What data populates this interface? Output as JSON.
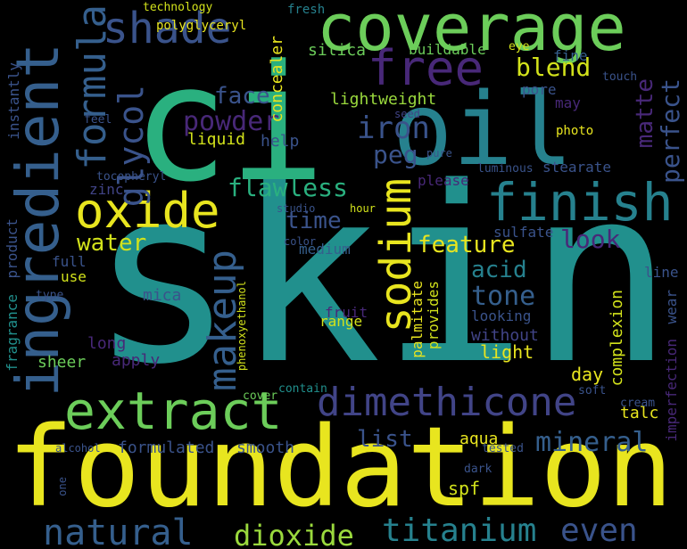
{
  "words": {
    "skin": "skin",
    "ci": "ci",
    "oil": "oil",
    "foundation": "foundation",
    "coverage": "coverage",
    "ingredient": "ingredient",
    "extract": "extract",
    "dimethicone": "dimethicone",
    "oxide": "oxide",
    "finish": "finish",
    "shade": "shade",
    "free": "free",
    "formula": "formula",
    "glycol": "glycol",
    "sodium": "sodium",
    "makeup": "makeup",
    "natural": "natural",
    "dioxide": "dioxide",
    "titanium": "titanium",
    "even": "even",
    "mineral": "mineral",
    "iron": "iron",
    "peg": "peg",
    "powder": "powder",
    "face": "face",
    "blend": "blend",
    "flawless": "flawless",
    "look": "look",
    "feature": "feature",
    "acid": "acid",
    "tone": "tone",
    "water": "water",
    "time": "time",
    "matte": "matte",
    "perfect": "perfect",
    "lightweight": "lightweight",
    "liquid": "liquid",
    "help": "help",
    "concealer": "concealer",
    "silica": "silica",
    "buildable": "buildable",
    "list": "list",
    "spf": "spf",
    "aqua": "aqua",
    "smooth": "smooth",
    "formulated": "formulated",
    "talc": "talc",
    "day": "day",
    "light": "light",
    "without": "without",
    "looking": "looking",
    "range": "range",
    "fruit": "fruit",
    "sheer": "sheer",
    "apply": "apply",
    "long": "long",
    "mica": "mica",
    "use": "use",
    "full": "full",
    "medium": "medium",
    "stearate": "stearate",
    "sulfate": "sulfate",
    "palmitate": "palmitate",
    "provides": "provides",
    "complexion": "complexion",
    "imperfection": "imperfection",
    "wear": "wear",
    "line": "line",
    "technology": "technology",
    "polyglyceryl": "polyglyceryl",
    "fresh": "fresh",
    "eye": "eye",
    "fine": "fine",
    "touch": "touch",
    "pore": "pore",
    "may": "may",
    "photo": "photo",
    "seed": "seed",
    "pure": "pure",
    "luminous": "luminous",
    "please": "please",
    "instantly": "instantly",
    "feel": "feel",
    "product": "product",
    "fragrance": "fragrance",
    "type": "type",
    "zinc": "zinc",
    "tocopheryl": "tocopheryl",
    "studio": "studio",
    "hour": "hour",
    "color": "color",
    "phenoxyethanol": "phenoxyethanol",
    "cover": "cover",
    "contain": "contain",
    "soft": "soft",
    "cream": "cream",
    "tested": "tested",
    "dark": "dark",
    "alcohol": "alcohol",
    "one": "one"
  },
  "palette": {
    "yellow": "#e8e51f",
    "green": "#6ccd5a",
    "teal": "#21908d",
    "blue": "#3a538b",
    "purple": "#482878",
    "dark_purple": "#440154",
    "background": "#000000"
  }
}
